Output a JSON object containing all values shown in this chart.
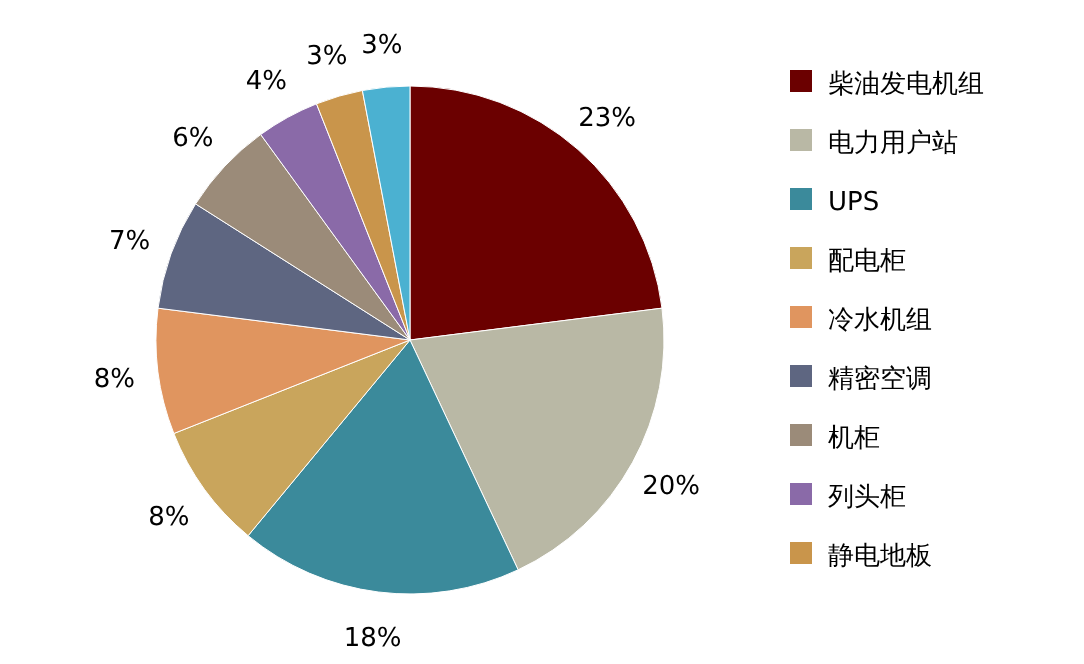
{
  "chart_data": {
    "type": "pie",
    "categories": [
      "柴油发电机组",
      "电力用户站",
      "UPS",
      "配电柜",
      "冷水机组",
      "精密空调",
      "机柜",
      "列头柜",
      "静电地板",
      null
    ],
    "values": [
      23,
      20,
      18,
      8,
      8,
      7,
      6,
      4,
      3,
      3
    ],
    "colors": [
      "#6b0000",
      "#b9b8a5",
      "#3b8a9b",
      "#c9a55c",
      "#e0955f",
      "#5e6681",
      "#9b8b79",
      "#8a6aa8",
      "#c9954b",
      "#4bb1d1"
    ],
    "value_labels": [
      "23%",
      "20%",
      "18%",
      "8%",
      "8%",
      "7%",
      "6%",
      "4%",
      "3%",
      "3%"
    ],
    "legend": "right"
  }
}
